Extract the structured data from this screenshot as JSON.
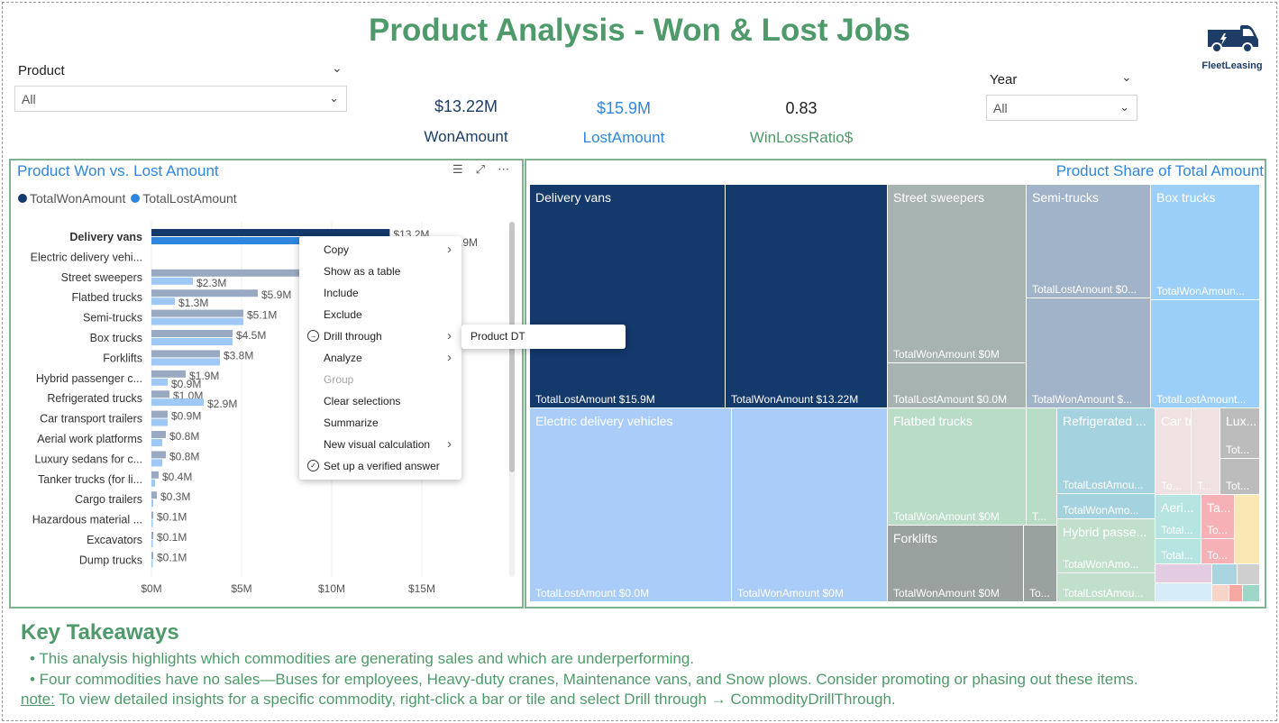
{
  "header": {
    "title": "Product Analysis - Won & Lost Jobs",
    "logo_text": "FleetLeasing"
  },
  "slicers": {
    "product": {
      "label": "Product",
      "value": "All"
    },
    "year": {
      "label": "Year",
      "value": "All"
    }
  },
  "kpis": {
    "won": {
      "value": "$13.22M",
      "label": "WonAmount",
      "color": "#1d3d66"
    },
    "lost": {
      "value": "$15.9M",
      "label": "LostAmount",
      "color": "#2e86de"
    },
    "ratio": {
      "value": "0.83",
      "label": "WinLossRatio$",
      "color": "#4f9a6a"
    }
  },
  "colors": {
    "accent_green": "#4f9a6a",
    "won_bar": "#14396b",
    "lost_bar": "#2e86de",
    "won_bar_dim": "#9aa9c2",
    "lost_bar_dim": "#9ec8f5"
  },
  "bar_chart": {
    "title": "Product Won vs. Lost Amount",
    "legend": [
      "TotalWonAmount",
      "TotalLostAmount"
    ]
  },
  "chart_data": {
    "type": "bar",
    "orientation": "horizontal",
    "categories": [
      "Delivery vans",
      "Electric delivery vehi...",
      "Street sweepers",
      "Flatbed trucks",
      "Semi-trucks",
      "Box trucks",
      "Forklifts",
      "Hybrid passenger c...",
      "Refrigerated trucks",
      "Car transport trailers",
      "Aerial work platforms",
      "Luxury sedans for c...",
      "Tanker trucks (for li...",
      "Cargo trailers",
      "Hazardous material ...",
      "Excavators",
      "Dump trucks"
    ],
    "series": [
      {
        "name": "TotalWonAmount",
        "values": [
          13.22,
          null,
          8.2,
          5.9,
          5.1,
          4.5,
          3.8,
          1.9,
          1.0,
          0.9,
          0.8,
          0.8,
          0.4,
          0.3,
          0.1,
          0.1,
          0.1
        ]
      },
      {
        "name": "TotalLostAmount",
        "values": [
          15.9,
          null,
          2.3,
          1.3,
          5.1,
          4.5,
          3.8,
          0.9,
          2.9,
          0.9,
          0.6,
          0.6,
          0.2,
          0.1,
          0.05,
          0.05,
          0.05
        ]
      }
    ],
    "won_labels": [
      "$13.2M",
      "",
      "",
      "$5.9M",
      "$5.1M",
      "$4.5M",
      "$3.8M",
      "$1.9M",
      "$1.0M",
      "$0.9M",
      "$0.8M",
      "$0.8M",
      "$0.4M",
      "$0.3M",
      "$0.1M",
      "$0.1M",
      "$0.1M"
    ],
    "lost_labels": [
      "$15.9M",
      "",
      "$2.3M",
      "$1.3M",
      "",
      "",
      "",
      "$0.9M",
      "$2.9M",
      "",
      "",
      "",
      "",
      "",
      "",
      "",
      ""
    ],
    "xticks": [
      "$0M",
      "$5M",
      "$10M",
      "$15M"
    ],
    "xlim": [
      0,
      20
    ],
    "highlighted": "Delivery vans"
  },
  "context_menu": {
    "items": [
      {
        "label": "Copy",
        "arrow": "›",
        "icon": ""
      },
      {
        "label": "Show as a table",
        "arrow": "",
        "icon": ""
      },
      {
        "label": "Include",
        "arrow": "",
        "icon": ""
      },
      {
        "label": "Exclude",
        "arrow": "",
        "icon": ""
      },
      {
        "label": "Drill through",
        "arrow": "›",
        "icon": "drill"
      },
      {
        "label": "Analyze",
        "arrow": "›",
        "icon": ""
      },
      {
        "label": "Group",
        "arrow": "",
        "icon": "",
        "disabled": true
      },
      {
        "label": "Clear selections",
        "arrow": "",
        "icon": ""
      },
      {
        "label": "Summarize",
        "arrow": "",
        "icon": ""
      },
      {
        "label": "New visual calculation",
        "arrow": "›",
        "icon": ""
      },
      {
        "label": "Set up a verified answer",
        "arrow": "",
        "icon": "check"
      }
    ],
    "submenu_item": "Product DT"
  },
  "treemap": {
    "title": "Product Share of Total Amount",
    "tiles": [
      {
        "head": "Delivery vans",
        "foot": "TotalLostAmount $15.9M"
      },
      {
        "head": "",
        "foot": "TotalWonAmount $13.22M"
      },
      {
        "head": "Street sweepers",
        "foot": "TotalWonAmount $0M"
      },
      {
        "head": "",
        "foot": "TotalLostAmount $0.0M"
      },
      {
        "head": "Semi-trucks",
        "foot": "TotalLostAmount $0..."
      },
      {
        "head": "",
        "foot": "TotalWonAmount $..."
      },
      {
        "head": "Box trucks",
        "foot": "TotalWonAmoun..."
      },
      {
        "head": "",
        "foot": "TotalLostAmount..."
      },
      {
        "head": "Electric delivery vehicles",
        "foot": "TotalLostAmount $0.0M"
      },
      {
        "head": "",
        "foot": "TotalWonAmount $0M"
      },
      {
        "head": "Flatbed trucks",
        "foot": "TotalWonAmount $0M"
      },
      {
        "head": "",
        "foot": "T..."
      },
      {
        "head": "Forklifts",
        "foot": "TotalWonAmount $0M"
      },
      {
        "head": "",
        "foot": "To..."
      },
      {
        "head": "Refrigerated ...",
        "foot": "TotalLostAmou..."
      },
      {
        "head": "",
        "foot": "TotalWonAmo..."
      },
      {
        "head": "Hybrid passe...",
        "foot": "TotalWonAmo..."
      },
      {
        "head": "",
        "foot": "TotalLostAmou..."
      },
      {
        "head": "Car tra...",
        "foot": "To..."
      },
      {
        "head": "",
        "foot": "T..."
      },
      {
        "head": "Lux...",
        "foot": "Tot..."
      },
      {
        "head": "",
        "foot": "Tot..."
      },
      {
        "head": "Aeri...",
        "foot": "Total..."
      },
      {
        "head": "",
        "foot": "Total..."
      },
      {
        "head": "Ta...",
        "foot": "To..."
      },
      {
        "head": "",
        "foot": "To..."
      }
    ]
  },
  "takeaways": {
    "title": "Key Takeaways",
    "bullets": [
      "• This analysis highlights which commodities are generating sales and which are underperforming.",
      "• Four commodities have no sales—Buses for employees, Heavy-duty cranes, Maintenance vans, and Snow plows. Consider promoting or phasing out these items."
    ],
    "note_label": "note:",
    "note_text": " To view detailed insights for a specific commodity, right-click a bar or tile and select Drill through → CommodityDrillThrough."
  }
}
